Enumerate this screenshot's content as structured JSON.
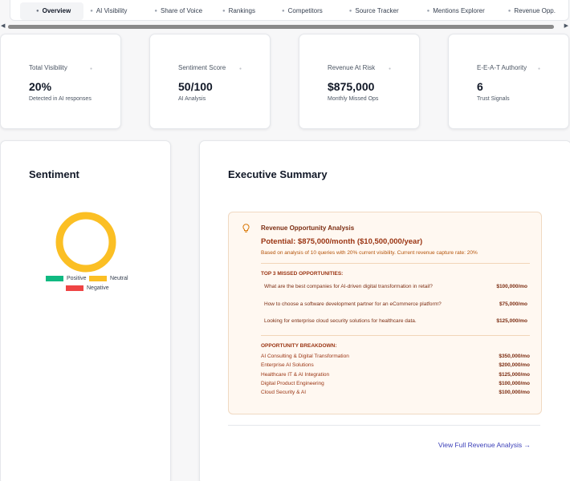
{
  "tabs": [
    {
      "label": "Overview",
      "active": true
    },
    {
      "label": "AI Visibility",
      "active": false
    },
    {
      "label": "Share of Voice",
      "active": false
    },
    {
      "label": "Rankings",
      "active": false
    },
    {
      "label": "Competitors",
      "active": false
    },
    {
      "label": "Source Tracker",
      "active": false
    },
    {
      "label": "Mentions Explorer",
      "active": false
    },
    {
      "label": "Revenue Opp.",
      "active": false
    }
  ],
  "scrollbar": {
    "left_arrow": "◀",
    "right_arrow": "▶"
  },
  "metrics": [
    {
      "title": "Total Visibility",
      "value": "20%",
      "subtitle": "Detected in AI responses"
    },
    {
      "title": "Sentiment Score",
      "value": "50/100",
      "subtitle": "AI Analysis"
    },
    {
      "title": "Revenue At Risk",
      "value": "$875,000",
      "subtitle": "Monthly Missed Ops"
    },
    {
      "title": "E-E-A-T Authority",
      "value": "6",
      "subtitle": "Trust Signals"
    }
  ],
  "sentiment": {
    "title": "Sentiment",
    "legend": [
      {
        "label": "Positive",
        "color": "#10b981"
      },
      {
        "label": "Neutral",
        "color": "#fbbf24"
      },
      {
        "label": "Negative",
        "color": "#ef4444"
      }
    ],
    "chart_data": {
      "type": "pie",
      "categories": [
        "Positive",
        "Neutral",
        "Negative"
      ],
      "values": [
        0,
        100,
        0
      ],
      "colors": [
        "#10b981",
        "#fbbf24",
        "#ef4444"
      ]
    }
  },
  "executive": {
    "title": "Executive Summary",
    "revenue_title": "Revenue Opportunity Analysis",
    "potential": "Potential: $875,000/month ($10,500,000/year)",
    "basis": "Based on analysis of 10 queries with 20% current visibility. Current revenue capture rate: 20%",
    "missed_heading": "TOP 3 MISSED OPPORTUNITIES:",
    "missed": [
      {
        "query": "What are the best companies for AI-driven digital transformation in retail?",
        "amount": "$100,000/mo"
      },
      {
        "query": "How to choose a software development partner for an eCommerce platform?",
        "amount": "$75,000/mo"
      },
      {
        "query": "Looking for enterprise cloud security solutions for healthcare data.",
        "amount": "$125,000/mo"
      }
    ],
    "breakdown_heading": "OPPORTUNITY BREAKDOWN:",
    "breakdown": [
      {
        "label": "AI Consulting & Digital Transformation",
        "amount": "$350,000/mo"
      },
      {
        "label": "Enterprise AI Solutions",
        "amount": "$200,000/mo"
      },
      {
        "label": "Healthcare IT & AI Integration",
        "amount": "$125,000/mo"
      },
      {
        "label": "Digital Product Engineering",
        "amount": "$100,000/mo"
      },
      {
        "label": "Cloud Security & AI",
        "amount": "$100,000/mo"
      }
    ],
    "link": "View Full Revenue Analysis →"
  }
}
